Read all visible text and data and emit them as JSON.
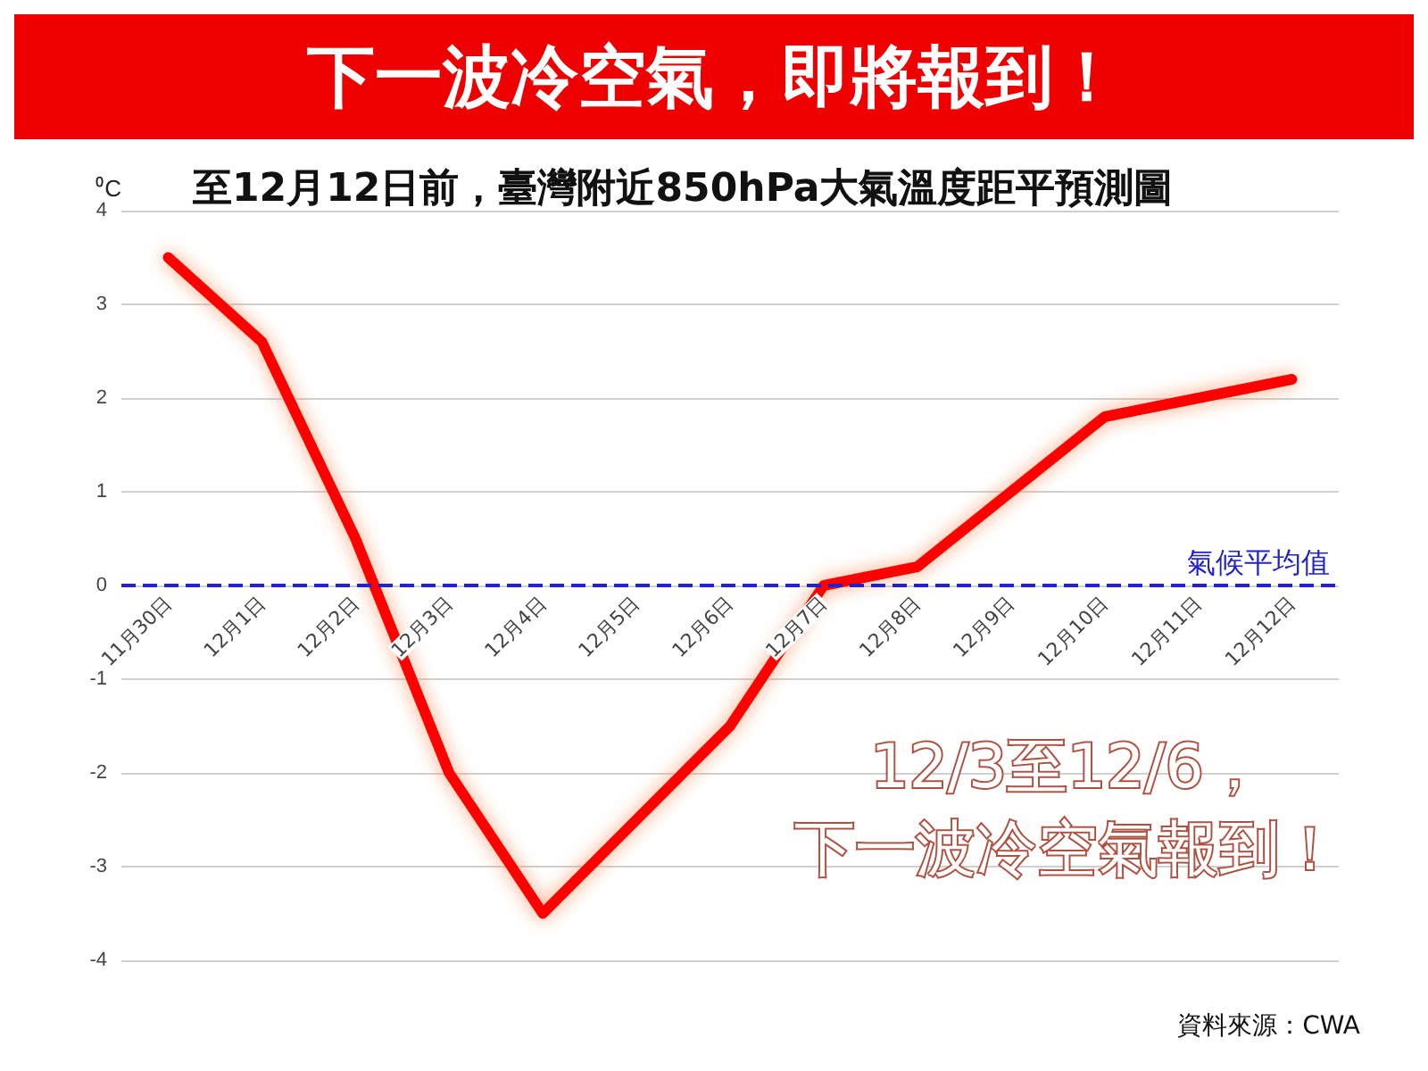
{
  "chart_data": {
    "type": "line",
    "title": "下一波冷空氣，即將報到！",
    "subtitle": "至12月12日前，臺灣附近850hPa大氣溫度距平預測圖",
    "ylabel": "⁰C",
    "categories": [
      "11月30日",
      "12月1日",
      "12月2日",
      "12月3日",
      "12月4日",
      "12月5日",
      "12月6日",
      "12月7日",
      "12月8日",
      "12月9日",
      "12月10日",
      "12月11日",
      "12月12日"
    ],
    "series": [
      {
        "color": "#ff0000",
        "values": [
          3.5,
          2.6,
          0.5,
          -2,
          -3.5,
          -2.5,
          -1.5,
          0,
          0.2,
          1,
          1.8,
          2,
          2.2
        ]
      }
    ],
    "ylim": [
      -4,
      4
    ],
    "yticks": [
      -4,
      -3,
      -2,
      -1,
      0,
      1,
      2,
      3,
      4
    ],
    "ref_lines": [
      {
        "axis": "y",
        "value": 0,
        "label": "氣候平均值",
        "color": "#2222cc",
        "line_style": "dashed"
      }
    ],
    "annotations": [
      "12/3至12/6，",
      "下一波冷空氣報到！",
      "資料來源：CWA"
    ],
    "grid": "y",
    "marker": "none",
    "line_style": "solid"
  }
}
